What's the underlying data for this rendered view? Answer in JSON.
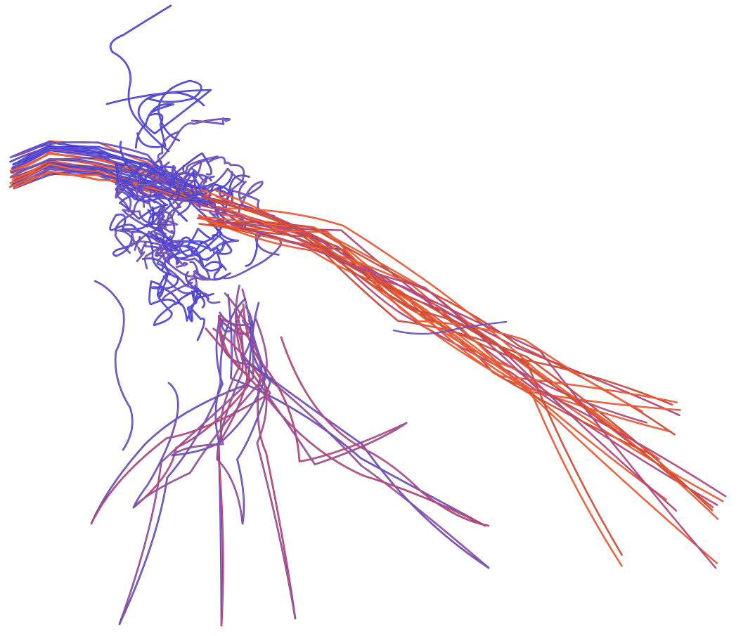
{
  "image": {
    "subject": "streamline-tubes",
    "background": "#ffffff",
    "palette": {
      "blue": "#3a2fd0",
      "violet": "#5a3bb5",
      "purple": "#8a3a8a",
      "magenta": "#a8306a",
      "red": "#c8361a",
      "orange": "#e8461a"
    }
  }
}
